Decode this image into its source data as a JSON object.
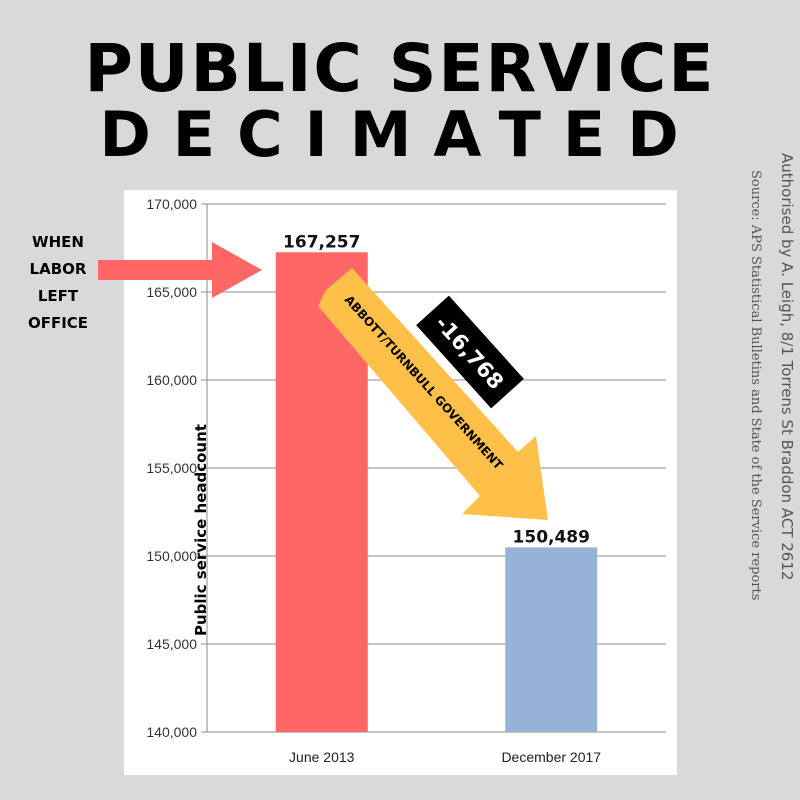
{
  "title_line1": "PUBLIC SERVICE",
  "title_line2": "DECIMATED",
  "side_note_author": "Authorised by A. Leigh, 8/1 Torrens St Braddon ACT 2612",
  "side_note_source": "Source: APS Statistical Bulletins and State of the Service reports",
  "annotations": {
    "left_arrow_lines": [
      "WHEN",
      "LABOR",
      "LEFT",
      "OFFICE"
    ],
    "decline_arrow_label": "ABBOTT/TURNBULL GOVERNMENT",
    "change_label": "-16,768"
  },
  "colors": {
    "background": "#d9d9d9",
    "bar_2013": "#ff6666",
    "bar_2017": "#95b3d7",
    "left_arrow": "#ff6666",
    "decline_arrow": "#ffc04a",
    "change_box": "#000000"
  },
  "chart_data": {
    "type": "bar",
    "categories": [
      "June 2013",
      "December 2017"
    ],
    "values": [
      167257,
      150489
    ],
    "data_labels": [
      "167,257",
      "150,489"
    ],
    "ylabel": "Public service headcount",
    "xlabel": "",
    "ylim": [
      140000,
      170000
    ],
    "yticks": [
      140000,
      145000,
      150000,
      155000,
      160000,
      165000,
      170000
    ],
    "ytick_labels": [
      "140,000",
      "145,000",
      "150,000",
      "155,000",
      "160,000",
      "165,000",
      "170,000"
    ],
    "grid": true
  }
}
